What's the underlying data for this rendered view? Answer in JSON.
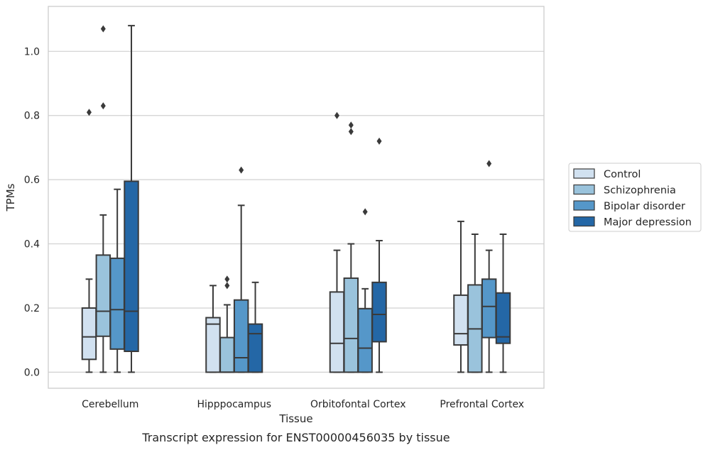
{
  "chart_data": {
    "type": "box",
    "xlabel": "Tissue",
    "ylabel": "TPMs",
    "caption": "Transcript expression for ENST00000456035 by tissue",
    "ylim": [
      -0.05,
      1.14
    ],
    "yticks": [
      "0.0",
      "0.2",
      "0.4",
      "0.6",
      "0.8",
      "1.0"
    ],
    "grid": true,
    "legend_position": "right",
    "categories": [
      "Cerebellum",
      "Hipppocampus",
      "Orbitofontal Cortex",
      "Prefrontal Cortex"
    ],
    "series": [
      {
        "name": "Control",
        "color": "#d1e1f0",
        "boxes": [
          {
            "whislo": 0.0,
            "q1": 0.04,
            "med": 0.11,
            "q3": 0.2,
            "whishi": 0.29,
            "fliers": [
              0.81
            ]
          },
          {
            "whislo": 0.0,
            "q1": 0.0,
            "med": 0.15,
            "q3": 0.17,
            "whishi": 0.27,
            "fliers": []
          },
          {
            "whislo": 0.0,
            "q1": 0.0,
            "med": 0.09,
            "q3": 0.25,
            "whishi": 0.38,
            "fliers": [
              0.8
            ]
          },
          {
            "whislo": 0.0,
            "q1": 0.085,
            "med": 0.12,
            "q3": 0.24,
            "whishi": 0.47,
            "fliers": []
          }
        ]
      },
      {
        "name": "Schizophrenia",
        "color": "#9ac3dc",
        "boxes": [
          {
            "whislo": 0.0,
            "q1": 0.112,
            "med": 0.19,
            "q3": 0.365,
            "whishi": 0.49,
            "fliers": [
              0.83,
              1.07
            ]
          },
          {
            "whislo": 0.0,
            "q1": 0.0,
            "med": 0.0,
            "q3": 0.108,
            "whishi": 0.21,
            "fliers": [
              0.27,
              0.29
            ]
          },
          {
            "whislo": 0.0,
            "q1": 0.0,
            "med": 0.105,
            "q3": 0.293,
            "whishi": 0.4,
            "fliers": [
              0.75,
              0.77
            ]
          },
          {
            "whislo": 0.0,
            "q1": 0.0,
            "med": 0.135,
            "q3": 0.272,
            "whishi": 0.43,
            "fliers": []
          }
        ]
      },
      {
        "name": "Bipolar disorder",
        "color": "#5597c9",
        "boxes": [
          {
            "whislo": 0.0,
            "q1": 0.072,
            "med": 0.195,
            "q3": 0.355,
            "whishi": 0.57,
            "fliers": []
          },
          {
            "whislo": 0.0,
            "q1": 0.0,
            "med": 0.045,
            "q3": 0.225,
            "whishi": 0.52,
            "fliers": [
              0.63
            ]
          },
          {
            "whislo": 0.0,
            "q1": 0.0,
            "med": 0.075,
            "q3": 0.198,
            "whishi": 0.26,
            "fliers": [
              0.5
            ]
          },
          {
            "whislo": 0.0,
            "q1": 0.108,
            "med": 0.205,
            "q3": 0.29,
            "whishi": 0.38,
            "fliers": [
              0.65
            ]
          }
        ]
      },
      {
        "name": "Major depression",
        "color": "#2467a6",
        "boxes": [
          {
            "whislo": 0.0,
            "q1": 0.065,
            "med": 0.19,
            "q3": 0.595,
            "whishi": 1.08,
            "fliers": []
          },
          {
            "whislo": 0.0,
            "q1": 0.0,
            "med": 0.12,
            "q3": 0.15,
            "whishi": 0.28,
            "fliers": []
          },
          {
            "whislo": 0.0,
            "q1": 0.095,
            "med": 0.18,
            "q3": 0.28,
            "whishi": 0.41,
            "fliers": [
              0.72
            ]
          },
          {
            "whislo": 0.0,
            "q1": 0.09,
            "med": 0.11,
            "q3": 0.247,
            "whishi": 0.43,
            "fliers": []
          }
        ]
      }
    ]
  }
}
